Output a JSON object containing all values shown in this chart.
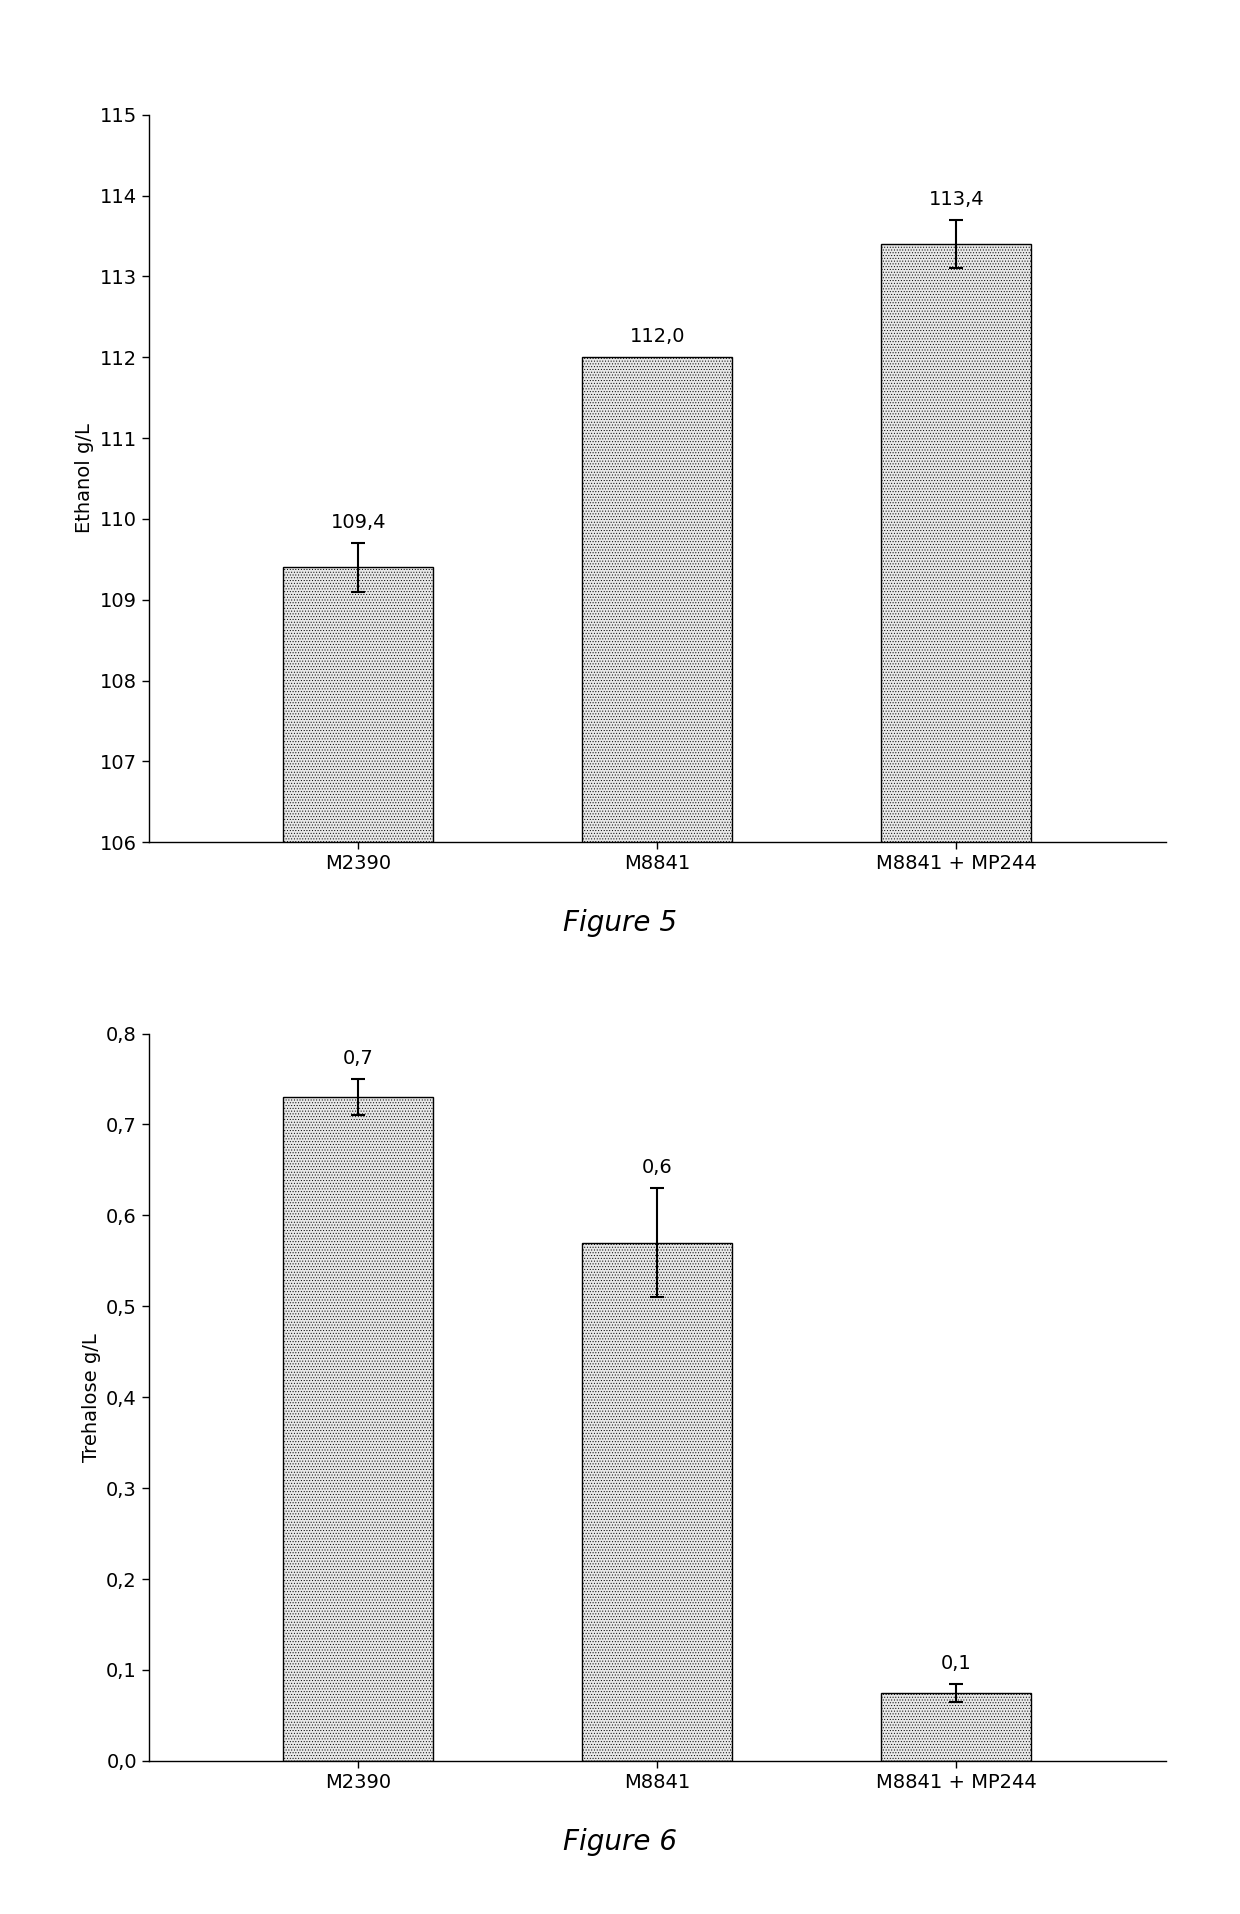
{
  "fig1": {
    "categories": [
      "M2390",
      "M8841",
      "M8841 + MP244"
    ],
    "values": [
      109.4,
      112.0,
      113.4
    ],
    "errors": [
      0.3,
      0.0,
      0.3
    ],
    "ylabel": "Ethanol g/L",
    "ylim": [
      106,
      115
    ],
    "yticks": [
      106,
      107,
      108,
      109,
      110,
      111,
      112,
      113,
      114,
      115
    ],
    "bar_color": "#e8e8e8",
    "bar_hatch": "......",
    "figure_label": "Figure 5",
    "value_labels": [
      "109,4",
      "112,0",
      "113,4"
    ],
    "label_fontsize": 14,
    "tick_fontsize": 14,
    "ylabel_fontsize": 14,
    "figure_label_fontsize": 20
  },
  "fig2": {
    "categories": [
      "M2390",
      "M8841",
      "M8841 + MP244"
    ],
    "values": [
      0.73,
      0.57,
      0.075
    ],
    "errors": [
      0.02,
      0.06,
      0.01
    ],
    "ylabel": "Trehalose g/L",
    "ylim": [
      0.0,
      0.8
    ],
    "yticks": [
      0.0,
      0.1,
      0.2,
      0.3,
      0.4,
      0.5,
      0.6,
      0.7,
      0.8
    ],
    "bar_color": "#e8e8e8",
    "bar_hatch": "......",
    "figure_label": "Figure 6",
    "value_labels": [
      "0,7",
      "0,6",
      "0,1"
    ],
    "label_fontsize": 14,
    "tick_fontsize": 14,
    "ylabel_fontsize": 14,
    "figure_label_fontsize": 20
  },
  "background_color": "#ffffff",
  "bar_edge_color": "#000000",
  "error_color": "#000000",
  "bar_width": 0.5
}
